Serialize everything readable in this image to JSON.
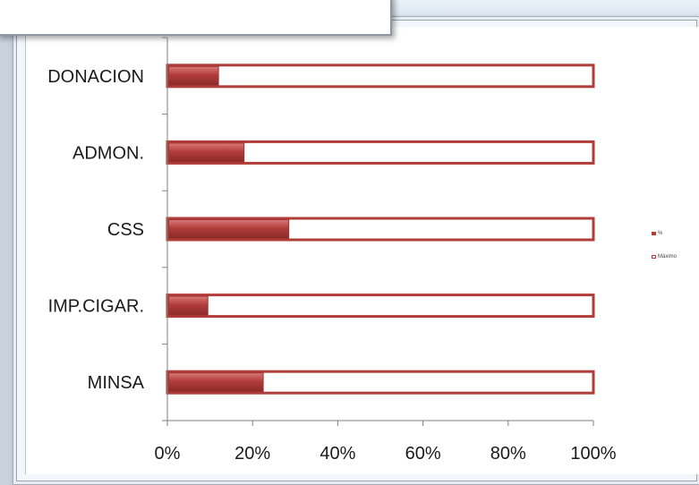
{
  "chart_data": {
    "type": "bar",
    "orientation": "horizontal",
    "categories": [
      "DONACION",
      "ADMON.",
      "CSS",
      "IMP.CIGAR.",
      "MINSA"
    ],
    "series": [
      {
        "name": "%",
        "values": [
          0.12,
          0.18,
          0.285,
          0.095,
          0.225
        ]
      },
      {
        "name": "Máximo",
        "values": [
          1,
          1,
          1,
          1,
          1
        ]
      }
    ],
    "x_tick_labels": [
      "0%",
      "20%",
      "40%",
      "60%",
      "80%",
      "100%"
    ],
    "xlim": [
      0,
      1
    ],
    "grid": false,
    "legend_position": "right",
    "colors": {
      "pct_fill": "#b23c3a",
      "max_border": "#b23c3a",
      "axis": "#7f7f7f"
    }
  }
}
